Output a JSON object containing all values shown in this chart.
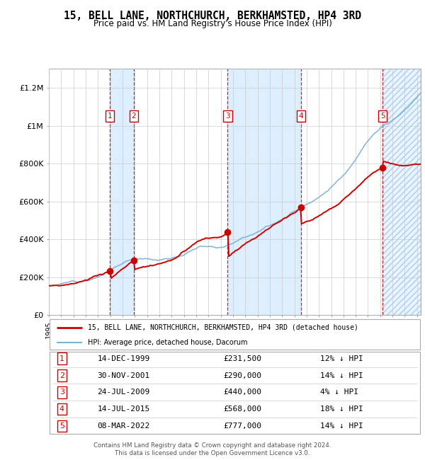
{
  "title": "15, BELL LANE, NORTHCHURCH, BERKHAMSTED, HP4 3RD",
  "subtitle": "Price paid vs. HM Land Registry's House Price Index (HPI)",
  "footer": "Contains HM Land Registry data © Crown copyright and database right 2024.\nThis data is licensed under the Open Government Licence v3.0.",
  "legend_line1": "15, BELL LANE, NORTHCHURCH, BERKHAMSTED, HP4 3RD (detached house)",
  "legend_line2": "HPI: Average price, detached house, Dacorum",
  "ylim": [
    0,
    1300000
  ],
  "yticks": [
    0,
    200000,
    400000,
    600000,
    800000,
    1000000,
    1200000
  ],
  "ytick_labels": [
    "£0",
    "£200K",
    "£400K",
    "£600K",
    "£800K",
    "£1M",
    "£1.2M"
  ],
  "sale_color": "#cc0000",
  "hpi_color": "#7ab0d4",
  "shade_color": "#ddeeff",
  "transactions": [
    {
      "num": 1,
      "date": "14-DEC-1999",
      "price": 231500,
      "year": 1999.96,
      "pct": "12%",
      "dir": "↓"
    },
    {
      "num": 2,
      "date": "30-NOV-2001",
      "price": 290000,
      "year": 2001.92,
      "pct": "14%",
      "dir": "↓"
    },
    {
      "num": 3,
      "date": "24-JUL-2009",
      "price": 440000,
      "year": 2009.56,
      "pct": "4%",
      "dir": "↓"
    },
    {
      "num": 4,
      "date": "14-JUL-2015",
      "price": 568000,
      "year": 2015.54,
      "pct": "18%",
      "dir": "↓"
    },
    {
      "num": 5,
      "date": "08-MAR-2022",
      "price": 777000,
      "year": 2022.19,
      "pct": "14%",
      "dir": "↓"
    }
  ],
  "xmin": 1995.0,
  "xmax": 2025.3
}
